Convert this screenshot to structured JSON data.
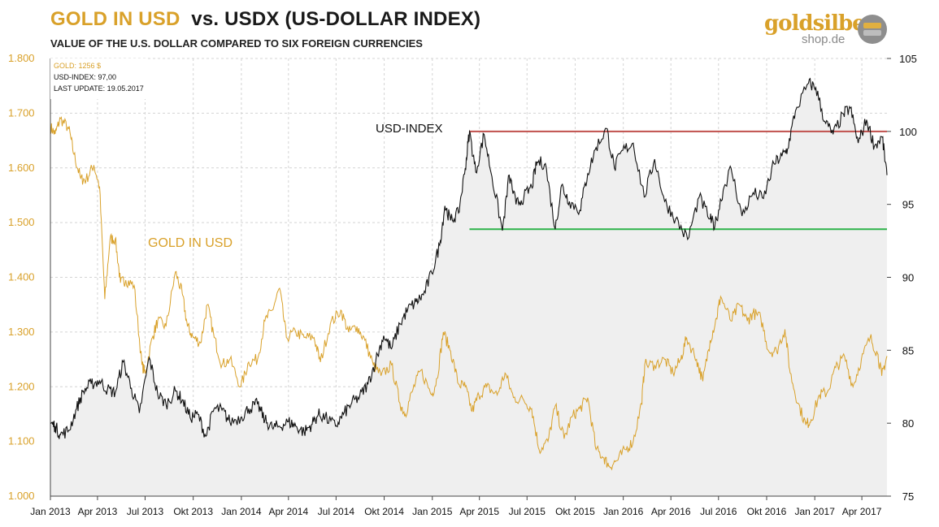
{
  "header": {
    "title_gold": "GOLD IN USD",
    "title_rest": "vs. USDX (US-DOLLAR  INDEX)",
    "subtitle": "VALUE OF THE U.S. DOLLAR COMPARED TO SIX FOREIGN CURRENCIES"
  },
  "logo": {
    "line1": "goldsilber",
    "line2": "shop.de",
    "icon": "gold-bars-coin-icon"
  },
  "colors": {
    "gold": "#d9a12a",
    "usdx": "#111111",
    "area": "#efefef",
    "resistance": "#c0504d",
    "support": "#2eb34a",
    "grid": "#d4d4d4"
  },
  "chart_data": {
    "type": "line",
    "info": {
      "gold": "GOLD: 1256  $",
      "usdx": "USD-INDEX: 97,00",
      "update": "LAST UPDATE: 19.05.2017"
    },
    "annotations": {
      "gold_label": "GOLD IN USD",
      "usdx_label": "USD-INDEX"
    },
    "x_ticks": [
      "Jan 2013",
      "Apr 2013",
      "Jul 2013",
      "Okt 2013",
      "Jan 2014",
      "Apr 2014",
      "Jul 2014",
      "Okt 2014",
      "Jan 2015",
      "Apr 2015",
      "Jul 2015",
      "Okt 2015",
      "Jan 2016",
      "Apr 2016",
      "Jul 2016",
      "Okt 2016",
      "Jan 2017",
      "Apr 2017"
    ],
    "x_range": [
      "2013-01-01",
      "2017-05-19"
    ],
    "y_left": {
      "name": "Gold (USD)",
      "ticks": [
        "1.000",
        "1.100",
        "1.200",
        "1.300",
        "1.400",
        "1.500",
        "1.600",
        "1.700",
        "1.800"
      ],
      "range": [
        1000,
        1800
      ]
    },
    "y_right": {
      "name": "USD-Index",
      "ticks": [
        "75",
        "80",
        "85",
        "90",
        "95",
        "100",
        "105"
      ],
      "range": [
        75,
        105
      ]
    },
    "reference_lines": [
      {
        "name": "resistance",
        "axis": "right",
        "value": 100.0,
        "from": "2015-03-13",
        "to": "2017-05-19"
      },
      {
        "name": "support",
        "axis": "right",
        "value": 93.3,
        "from": "2015-03-13",
        "to": "2017-05-19"
      }
    ],
    "grid": true,
    "series": [
      {
        "name": "Gold",
        "axis": "left",
        "points": [
          [
            "2013-01-01",
            1675
          ],
          [
            "2013-01-10",
            1662
          ],
          [
            "2013-01-20",
            1690
          ],
          [
            "2013-02-05",
            1672
          ],
          [
            "2013-02-15",
            1625
          ],
          [
            "2013-02-28",
            1580
          ],
          [
            "2013-03-10",
            1578
          ],
          [
            "2013-03-25",
            1605
          ],
          [
            "2013-04-05",
            1565
          ],
          [
            "2013-04-15",
            1360
          ],
          [
            "2013-04-25",
            1470
          ],
          [
            "2013-05-05",
            1470
          ],
          [
            "2013-05-15",
            1390
          ],
          [
            "2013-05-25",
            1395
          ],
          [
            "2013-06-10",
            1385
          ],
          [
            "2013-06-25",
            1240
          ],
          [
            "2013-07-01",
            1225
          ],
          [
            "2013-07-15",
            1290
          ],
          [
            "2013-07-25",
            1320
          ],
          [
            "2013-08-10",
            1310
          ],
          [
            "2013-08-28",
            1410
          ],
          [
            "2013-09-10",
            1370
          ],
          [
            "2013-09-20",
            1310
          ],
          [
            "2013-10-01",
            1290
          ],
          [
            "2013-10-15",
            1280
          ],
          [
            "2013-10-28",
            1350
          ],
          [
            "2013-11-10",
            1290
          ],
          [
            "2013-11-25",
            1240
          ],
          [
            "2013-12-10",
            1250
          ],
          [
            "2013-12-31",
            1200
          ],
          [
            "2014-01-15",
            1245
          ],
          [
            "2014-02-01",
            1250
          ],
          [
            "2014-02-15",
            1320
          ],
          [
            "2014-03-01",
            1340
          ],
          [
            "2014-03-15",
            1380
          ],
          [
            "2014-03-28",
            1290
          ],
          [
            "2014-04-15",
            1300
          ],
          [
            "2014-05-01",
            1290
          ],
          [
            "2014-05-20",
            1290
          ],
          [
            "2014-06-01",
            1245
          ],
          [
            "2014-06-20",
            1315
          ],
          [
            "2014-07-10",
            1340
          ],
          [
            "2014-07-25",
            1300
          ],
          [
            "2014-08-10",
            1310
          ],
          [
            "2014-08-25",
            1285
          ],
          [
            "2014-09-10",
            1240
          ],
          [
            "2014-09-25",
            1220
          ],
          [
            "2014-10-15",
            1240
          ],
          [
            "2014-10-31",
            1170
          ],
          [
            "2014-11-10",
            1150
          ],
          [
            "2014-11-25",
            1195
          ],
          [
            "2014-12-10",
            1230
          ],
          [
            "2014-12-31",
            1185
          ],
          [
            "2015-01-10",
            1215
          ],
          [
            "2015-01-22",
            1300
          ],
          [
            "2015-02-05",
            1265
          ],
          [
            "2015-02-20",
            1205
          ],
          [
            "2015-03-05",
            1200
          ],
          [
            "2015-03-18",
            1155
          ],
          [
            "2015-03-31",
            1185
          ],
          [
            "2015-04-15",
            1200
          ],
          [
            "2015-05-05",
            1185
          ],
          [
            "2015-05-20",
            1225
          ],
          [
            "2015-06-05",
            1180
          ],
          [
            "2015-06-25",
            1175
          ],
          [
            "2015-07-10",
            1160
          ],
          [
            "2015-07-24",
            1085
          ],
          [
            "2015-08-10",
            1100
          ],
          [
            "2015-08-24",
            1165
          ],
          [
            "2015-09-10",
            1105
          ],
          [
            "2015-09-25",
            1145
          ],
          [
            "2015-10-10",
            1160
          ],
          [
            "2015-10-25",
            1180
          ],
          [
            "2015-11-10",
            1085
          ],
          [
            "2015-11-25",
            1070
          ],
          [
            "2015-12-05",
            1055
          ],
          [
            "2015-12-20",
            1065
          ],
          [
            "2016-01-05",
            1085
          ],
          [
            "2016-01-20",
            1100
          ],
          [
            "2016-02-05",
            1170
          ],
          [
            "2016-02-11",
            1240
          ],
          [
            "2016-03-01",
            1240
          ],
          [
            "2016-03-20",
            1250
          ],
          [
            "2016-04-05",
            1225
          ],
          [
            "2016-04-20",
            1250
          ],
          [
            "2016-05-01",
            1290
          ],
          [
            "2016-05-20",
            1250
          ],
          [
            "2016-06-01",
            1210
          ],
          [
            "2016-06-15",
            1285
          ],
          [
            "2016-06-27",
            1325
          ],
          [
            "2016-07-05",
            1365
          ],
          [
            "2016-07-25",
            1320
          ],
          [
            "2016-08-10",
            1350
          ],
          [
            "2016-08-25",
            1320
          ],
          [
            "2016-09-05",
            1335
          ],
          [
            "2016-09-20",
            1325
          ],
          [
            "2016-10-05",
            1265
          ],
          [
            "2016-10-20",
            1265
          ],
          [
            "2016-11-05",
            1305
          ],
          [
            "2016-11-15",
            1225
          ],
          [
            "2016-11-30",
            1170
          ],
          [
            "2016-12-15",
            1130
          ],
          [
            "2016-12-25",
            1140
          ],
          [
            "2017-01-10",
            1185
          ],
          [
            "2017-01-25",
            1190
          ],
          [
            "2017-02-10",
            1235
          ],
          [
            "2017-02-27",
            1255
          ],
          [
            "2017-03-15",
            1200
          ],
          [
            "2017-03-31",
            1250
          ],
          [
            "2017-04-17",
            1290
          ],
          [
            "2017-05-01",
            1260
          ],
          [
            "2017-05-09",
            1220
          ],
          [
            "2017-05-19",
            1256
          ]
        ]
      },
      {
        "name": "USD-INDEX",
        "axis": "right",
        "points": [
          [
            "2013-01-01",
            80.0
          ],
          [
            "2013-01-10",
            79.8
          ],
          [
            "2013-01-20",
            79.2
          ],
          [
            "2013-02-05",
            79.5
          ],
          [
            "2013-02-20",
            81.0
          ],
          [
            "2013-03-05",
            82.2
          ],
          [
            "2013-03-20",
            82.7
          ],
          [
            "2013-04-05",
            82.9
          ],
          [
            "2013-04-20",
            82.3
          ],
          [
            "2013-05-05",
            82.1
          ],
          [
            "2013-05-20",
            84.2
          ],
          [
            "2013-06-05",
            82.4
          ],
          [
            "2013-06-20",
            80.7
          ],
          [
            "2013-07-09",
            84.5
          ],
          [
            "2013-07-25",
            82.0
          ],
          [
            "2013-08-10",
            81.3
          ],
          [
            "2013-08-28",
            82.2
          ],
          [
            "2013-09-10",
            81.6
          ],
          [
            "2013-09-25",
            80.4
          ],
          [
            "2013-10-10",
            80.6
          ],
          [
            "2013-10-25",
            79.1
          ],
          [
            "2013-11-10",
            81.0
          ],
          [
            "2013-11-25",
            80.9
          ],
          [
            "2013-12-10",
            80.1
          ],
          [
            "2013-12-31",
            80.4
          ],
          [
            "2014-01-15",
            81.0
          ],
          [
            "2014-02-01",
            81.3
          ],
          [
            "2014-02-15",
            80.2
          ],
          [
            "2014-03-01",
            79.7
          ],
          [
            "2014-03-15",
            79.8
          ],
          [
            "2014-04-01",
            80.1
          ],
          [
            "2014-04-15",
            79.8
          ],
          [
            "2014-05-01",
            79.4
          ],
          [
            "2014-05-15",
            79.9
          ],
          [
            "2014-05-28",
            80.6
          ],
          [
            "2014-06-10",
            80.4
          ],
          [
            "2014-06-30",
            79.8
          ],
          [
            "2014-07-15",
            80.6
          ],
          [
            "2014-07-31",
            81.4
          ],
          [
            "2014-08-15",
            81.8
          ],
          [
            "2014-08-31",
            82.7
          ],
          [
            "2014-09-15",
            84.3
          ],
          [
            "2014-09-30",
            86.0
          ],
          [
            "2014-10-15",
            85.1
          ],
          [
            "2014-10-31",
            86.8
          ],
          [
            "2014-11-15",
            87.8
          ],
          [
            "2014-12-01",
            88.3
          ],
          [
            "2014-12-15",
            88.8
          ],
          [
            "2014-12-31",
            90.3
          ],
          [
            "2015-01-15",
            92.2
          ],
          [
            "2015-01-25",
            94.9
          ],
          [
            "2015-02-05",
            93.9
          ],
          [
            "2015-02-20",
            94.4
          ],
          [
            "2015-03-05",
            97.5
          ],
          [
            "2015-03-13",
            100.0
          ],
          [
            "2015-03-25",
            97.2
          ],
          [
            "2015-04-10",
            99.8
          ],
          [
            "2015-04-25",
            96.9
          ],
          [
            "2015-05-15",
            93.2
          ],
          [
            "2015-05-28",
            97.0
          ],
          [
            "2015-06-10",
            95.0
          ],
          [
            "2015-06-25",
            95.5
          ],
          [
            "2015-07-10",
            96.2
          ],
          [
            "2015-07-20",
            97.9
          ],
          [
            "2015-08-05",
            97.8
          ],
          [
            "2015-08-24",
            93.3
          ],
          [
            "2015-09-05",
            96.3
          ],
          [
            "2015-09-20",
            95.2
          ],
          [
            "2015-10-10",
            94.6
          ],
          [
            "2015-10-25",
            97.1
          ],
          [
            "2015-11-10",
            98.9
          ],
          [
            "2015-11-30",
            100.2
          ],
          [
            "2015-12-15",
            97.5
          ],
          [
            "2015-12-31",
            98.7
          ],
          [
            "2016-01-20",
            99.2
          ],
          [
            "2016-02-10",
            95.5
          ],
          [
            "2016-03-01",
            98.1
          ],
          [
            "2016-03-20",
            95.2
          ],
          [
            "2016-04-10",
            94.0
          ],
          [
            "2016-05-03",
            92.6
          ],
          [
            "2016-05-25",
            95.5
          ],
          [
            "2016-06-15",
            94.0
          ],
          [
            "2016-06-24",
            93.5
          ],
          [
            "2016-07-10",
            96.0
          ],
          [
            "2016-07-25",
            97.5
          ],
          [
            "2016-08-15",
            94.2
          ],
          [
            "2016-09-05",
            95.8
          ],
          [
            "2016-09-25",
            95.4
          ],
          [
            "2016-10-15",
            97.8
          ],
          [
            "2016-10-30",
            98.3
          ],
          [
            "2016-11-10",
            98.8
          ],
          [
            "2016-11-25",
            101.4
          ],
          [
            "2016-12-20",
            103.3
          ],
          [
            "2017-01-03",
            103.0
          ],
          [
            "2017-01-20",
            100.7
          ],
          [
            "2017-02-05",
            99.8
          ],
          [
            "2017-02-25",
            101.2
          ],
          [
            "2017-03-10",
            101.6
          ],
          [
            "2017-03-25",
            99.2
          ],
          [
            "2017-04-10",
            100.8
          ],
          [
            "2017-04-25",
            99.0
          ],
          [
            "2017-05-10",
            99.6
          ],
          [
            "2017-05-19",
            97.0
          ]
        ]
      }
    ]
  }
}
